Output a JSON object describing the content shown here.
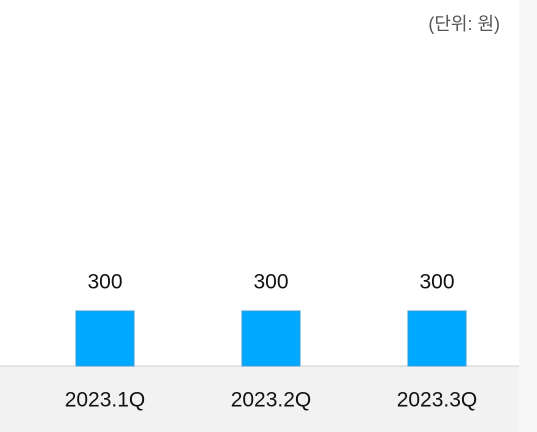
{
  "chart_data": {
    "type": "bar",
    "subtitle": "(단위: 원)",
    "categories": [
      "2023.1Q",
      "2023.2Q",
      "2023.3Q"
    ],
    "values": [
      300,
      300,
      300
    ],
    "color": "#00a8ff"
  }
}
